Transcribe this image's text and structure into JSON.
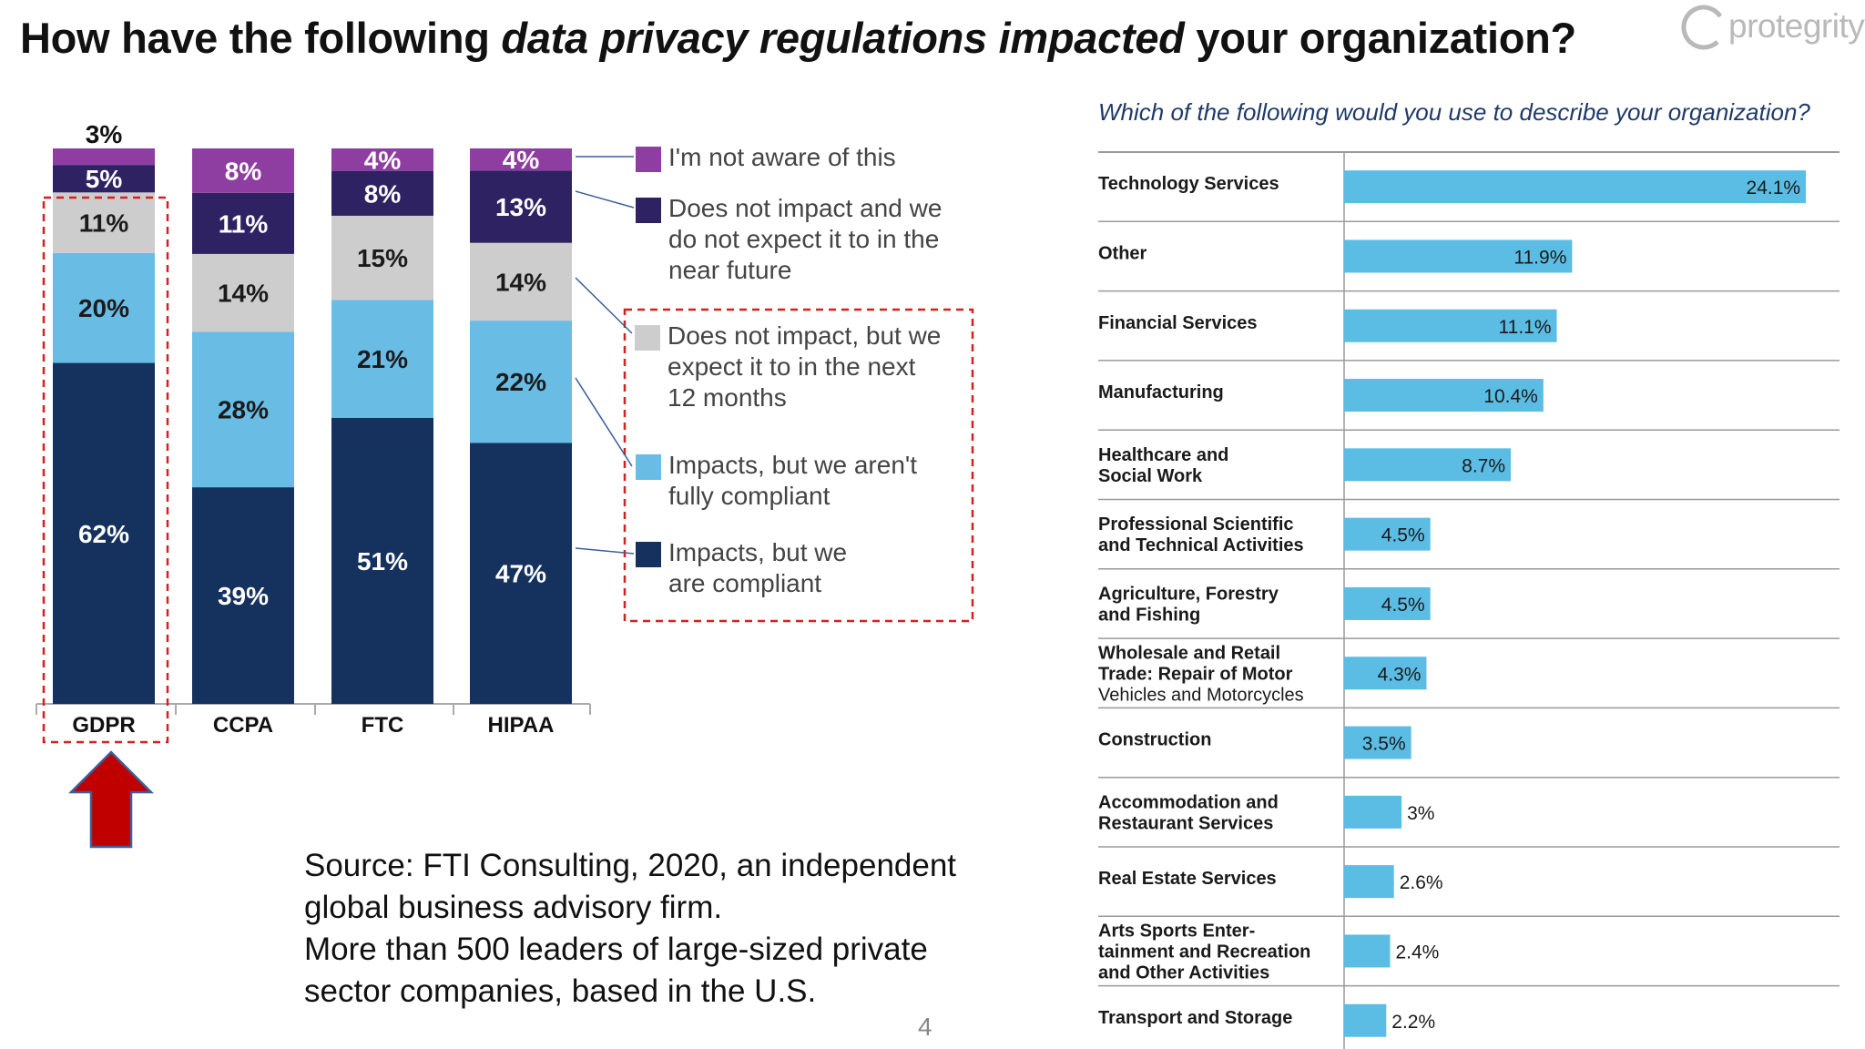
{
  "title": {
    "pre": "How have the following ",
    "em": "data privacy regulations impacted",
    "post": " your organization?"
  },
  "logo": {
    "text": "protegrity",
    "color": "#b9b9b9"
  },
  "colors": {
    "not_aware": "#8e3ea1",
    "no_impact_no_expect": "#2e2262",
    "no_impact_expect": "#cdcdcd",
    "impact_not_compliant": "#69bce4",
    "impact_compliant": "#15315e",
    "bar_blue": "#5bbce4",
    "highlight_red": "#d42020",
    "arrow_red": "#c00000",
    "arrow_edge": "#3a5f9c"
  },
  "chart_data": [
    {
      "type": "bar",
      "stacked": true,
      "orientation": "vertical",
      "categories": [
        "GDPR",
        "CCPA",
        "FTC",
        "HIPAA"
      ],
      "series": [
        {
          "name": "Impacts, but we are compliant",
          "key": "impact_compliant",
          "values": [
            62,
            39,
            51,
            47
          ]
        },
        {
          "name": "Impacts, but we aren't fully compliant",
          "key": "impact_not_compliant",
          "values": [
            20,
            28,
            21,
            22
          ]
        },
        {
          "name": "Does not impact, but we expect it to in the next 12 months",
          "key": "no_impact_expect",
          "values": [
            11,
            14,
            15,
            14
          ]
        },
        {
          "name": "Does not impact and we do not expect it to in the near future",
          "key": "no_impact_no_expect",
          "values": [
            5,
            11,
            8,
            13
          ]
        },
        {
          "name": "I'm not aware of this",
          "key": "not_aware",
          "values": [
            3,
            8,
            4,
            4
          ]
        }
      ],
      "labels": [
        [
          "62%",
          "39%",
          "51%",
          "47%"
        ],
        [
          "20%",
          "28%",
          "21%",
          "22%"
        ],
        [
          "11%",
          "14%",
          "15%",
          "14%"
        ],
        [
          "5%",
          "11%",
          "8%",
          "13%"
        ],
        [
          "3%",
          "8%",
          "4%",
          "4%"
        ]
      ],
      "ylim": [
        0,
        100
      ],
      "highlighted_category": "GDPR"
    },
    {
      "type": "bar",
      "orientation": "horizontal",
      "title": "Which of the following would you use to describe your organization?",
      "categories": [
        "Technology Services",
        "Other",
        "Financial Services",
        "Manufacturing",
        "Healthcare and\nSocial Work",
        "Professional Scientific\nand Technical Activities",
        "Agriculture, Forestry\nand Fishing",
        "Wholesale and Retail\nTrade: Repair of Motor\nVehicles and Motorcycles",
        "Construction",
        "Accommodation and\nRestaurant Services",
        "Real Estate Services",
        "Arts Sports Enter-\ntainment and Recreation\nand Other Activities",
        "Transport and Storage"
      ],
      "values": [
        24.1,
        11.9,
        11.1,
        10.4,
        8.7,
        4.5,
        4.5,
        4.3,
        3.5,
        3.0,
        2.6,
        2.4,
        2.2
      ],
      "value_labels": [
        "24.1%",
        "11.9%",
        "11.1%",
        "10.4%",
        "8.7%",
        "4.5%",
        "4.5%",
        "4.3%",
        "3.5%",
        "3%",
        "2.6%",
        "2.4%",
        "2.2%"
      ],
      "xlim": [
        0,
        25
      ]
    }
  ],
  "legend": [
    {
      "key": "not_aware",
      "label": "I'm not aware of this"
    },
    {
      "key": "no_impact_no_expect",
      "label": "Does not impact and we\ndo not expect it to in the\nnear future"
    },
    {
      "key": "no_impact_expect",
      "label": "Does not impact, but we\nexpect it to in the next\n12 months"
    },
    {
      "key": "impact_not_compliant",
      "label": "Impacts, but we aren't\nfully compliant"
    },
    {
      "key": "impact_compliant",
      "label": "Impacts, but we\nare compliant"
    }
  ],
  "source_lines": [
    "Source: FTI Consulting, 2020, an independent",
    "global business advisory firm.",
    "More than 500 leaders of large-sized private",
    "sector companies, based in the U.S."
  ],
  "page_number": "4"
}
